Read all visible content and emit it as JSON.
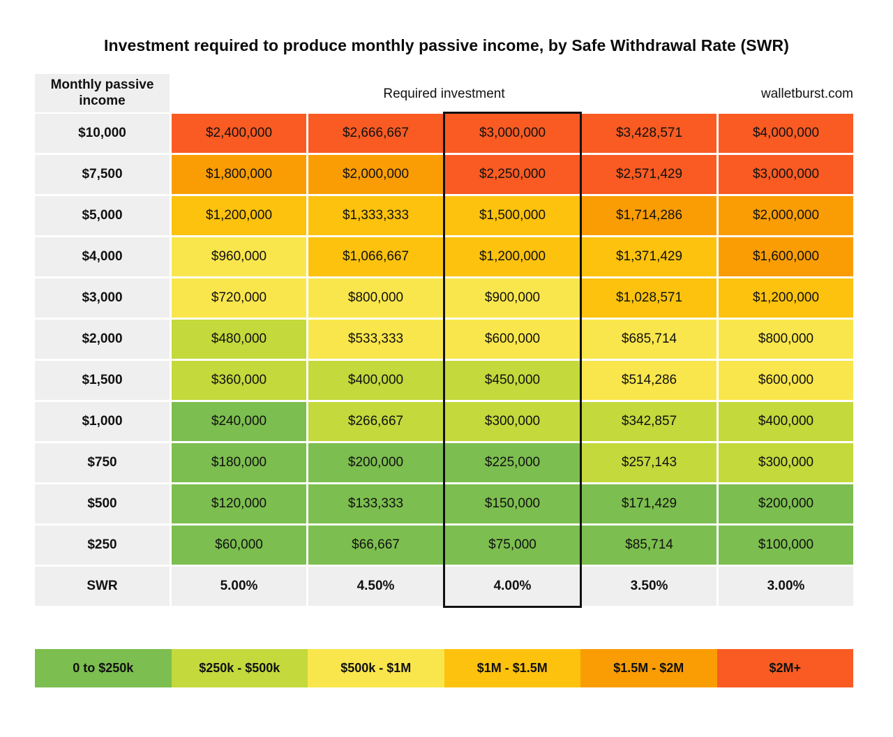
{
  "title": "Investment required to produce monthly passive income, by Safe Withdrawal Rate (SWR)",
  "header": {
    "row_label": "Monthly passive income",
    "center_label": "Required investment",
    "site": "walletburst.com"
  },
  "colors": {
    "green": "#7cbe4f",
    "yellow_green": "#c3d93c",
    "yellow": "#f9e64c",
    "amber": "#fcc20d",
    "orange": "#fa9d04",
    "red": "#f95b22",
    "gray": "#efefef",
    "highlight_border": "#111111"
  },
  "chart_data": {
    "type": "heatmap",
    "title": "Investment required to produce monthly passive income, by Safe Withdrawal Rate (SWR)",
    "x_axis_label": "SWR",
    "y_axis_label": "Monthly passive income",
    "swr_row_label": "SWR",
    "swr_labels": [
      "5.00%",
      "4.50%",
      "4.00%",
      "3.50%",
      "3.00%"
    ],
    "highlighted_column": "4.00%",
    "rows": [
      {
        "income": "$10,000",
        "cells": [
          {
            "value": "$2,400,000",
            "bucket": "red"
          },
          {
            "value": "$2,666,667",
            "bucket": "red"
          },
          {
            "value": "$3,000,000",
            "bucket": "red"
          },
          {
            "value": "$3,428,571",
            "bucket": "red"
          },
          {
            "value": "$4,000,000",
            "bucket": "red"
          }
        ]
      },
      {
        "income": "$7,500",
        "cells": [
          {
            "value": "$1,800,000",
            "bucket": "orange"
          },
          {
            "value": "$2,000,000",
            "bucket": "orange"
          },
          {
            "value": "$2,250,000",
            "bucket": "red"
          },
          {
            "value": "$2,571,429",
            "bucket": "red"
          },
          {
            "value": "$3,000,000",
            "bucket": "red"
          }
        ]
      },
      {
        "income": "$5,000",
        "cells": [
          {
            "value": "$1,200,000",
            "bucket": "amber"
          },
          {
            "value": "$1,333,333",
            "bucket": "amber"
          },
          {
            "value": "$1,500,000",
            "bucket": "amber"
          },
          {
            "value": "$1,714,286",
            "bucket": "orange"
          },
          {
            "value": "$2,000,000",
            "bucket": "orange"
          }
        ]
      },
      {
        "income": "$4,000",
        "cells": [
          {
            "value": "$960,000",
            "bucket": "yellow"
          },
          {
            "value": "$1,066,667",
            "bucket": "amber"
          },
          {
            "value": "$1,200,000",
            "bucket": "amber"
          },
          {
            "value": "$1,371,429",
            "bucket": "amber"
          },
          {
            "value": "$1,600,000",
            "bucket": "orange"
          }
        ]
      },
      {
        "income": "$3,000",
        "cells": [
          {
            "value": "$720,000",
            "bucket": "yellow"
          },
          {
            "value": "$800,000",
            "bucket": "yellow"
          },
          {
            "value": "$900,000",
            "bucket": "yellow"
          },
          {
            "value": "$1,028,571",
            "bucket": "amber"
          },
          {
            "value": "$1,200,000",
            "bucket": "amber"
          }
        ]
      },
      {
        "income": "$2,000",
        "cells": [
          {
            "value": "$480,000",
            "bucket": "yellow_green"
          },
          {
            "value": "$533,333",
            "bucket": "yellow"
          },
          {
            "value": "$600,000",
            "bucket": "yellow"
          },
          {
            "value": "$685,714",
            "bucket": "yellow"
          },
          {
            "value": "$800,000",
            "bucket": "yellow"
          }
        ]
      },
      {
        "income": "$1,500",
        "cells": [
          {
            "value": "$360,000",
            "bucket": "yellow_green"
          },
          {
            "value": "$400,000",
            "bucket": "yellow_green"
          },
          {
            "value": "$450,000",
            "bucket": "yellow_green"
          },
          {
            "value": "$514,286",
            "bucket": "yellow"
          },
          {
            "value": "$600,000",
            "bucket": "yellow"
          }
        ]
      },
      {
        "income": "$1,000",
        "cells": [
          {
            "value": "$240,000",
            "bucket": "green"
          },
          {
            "value": "$266,667",
            "bucket": "yellow_green"
          },
          {
            "value": "$300,000",
            "bucket": "yellow_green"
          },
          {
            "value": "$342,857",
            "bucket": "yellow_green"
          },
          {
            "value": "$400,000",
            "bucket": "yellow_green"
          }
        ]
      },
      {
        "income": "$750",
        "cells": [
          {
            "value": "$180,000",
            "bucket": "green"
          },
          {
            "value": "$200,000",
            "bucket": "green"
          },
          {
            "value": "$225,000",
            "bucket": "green"
          },
          {
            "value": "$257,143",
            "bucket": "yellow_green"
          },
          {
            "value": "$300,000",
            "bucket": "yellow_green"
          }
        ]
      },
      {
        "income": "$500",
        "cells": [
          {
            "value": "$120,000",
            "bucket": "green"
          },
          {
            "value": "$133,333",
            "bucket": "green"
          },
          {
            "value": "$150,000",
            "bucket": "green"
          },
          {
            "value": "$171,429",
            "bucket": "green"
          },
          {
            "value": "$200,000",
            "bucket": "green"
          }
        ]
      },
      {
        "income": "$250",
        "cells": [
          {
            "value": "$60,000",
            "bucket": "green"
          },
          {
            "value": "$66,667",
            "bucket": "green"
          },
          {
            "value": "$75,000",
            "bucket": "green"
          },
          {
            "value": "$85,714",
            "bucket": "green"
          },
          {
            "value": "$100,000",
            "bucket": "green"
          }
        ]
      }
    ],
    "legend": [
      {
        "label": "0 to $250k",
        "bucket": "green"
      },
      {
        "label": "$250k - $500k",
        "bucket": "yellow_green"
      },
      {
        "label": "$500k - $1M",
        "bucket": "yellow"
      },
      {
        "label": "$1M - $1.5M",
        "bucket": "amber"
      },
      {
        "label": "$1.5M - $2M",
        "bucket": "orange"
      },
      {
        "label": "$2M+",
        "bucket": "red"
      }
    ],
    "legend_position": "bottom",
    "grid": false
  }
}
